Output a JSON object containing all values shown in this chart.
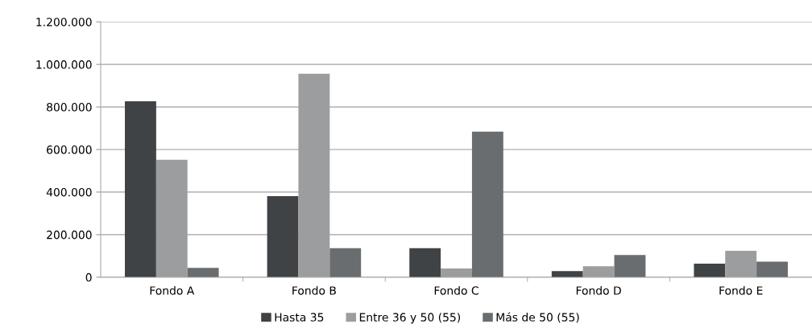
{
  "chart_data": {
    "type": "bar",
    "categories": [
      "Fondo A",
      "Fondo B",
      "Fondo C",
      "Fondo D",
      "Fondo E"
    ],
    "series": [
      {
        "name": "Hasta 35",
        "color": "#404345",
        "values": [
          827000,
          381000,
          136000,
          29000,
          64000
        ]
      },
      {
        "name": "Entre 36 y 50 (55)",
        "color": "#9b9d9e",
        "values": [
          552000,
          956000,
          41000,
          51000,
          124000
        ]
      },
      {
        "name": "Más de 50 (55)",
        "color": "#696d6f",
        "values": [
          44000,
          136000,
          684000,
          104000,
          73000
        ]
      }
    ],
    "ylim": [
      0,
      1200000
    ],
    "yticks": [
      {
        "value": 0,
        "label": "0"
      },
      {
        "value": 200000,
        "label": "200.000"
      },
      {
        "value": 400000,
        "label": "400.000"
      },
      {
        "value": 600000,
        "label": "600.000"
      },
      {
        "value": 800000,
        "label": "800.000"
      },
      {
        "value": 1000000,
        "label": "1.000.000"
      },
      {
        "value": 1200000,
        "label": "1.200.000"
      }
    ],
    "grid": "y",
    "legend": "bottom"
  }
}
